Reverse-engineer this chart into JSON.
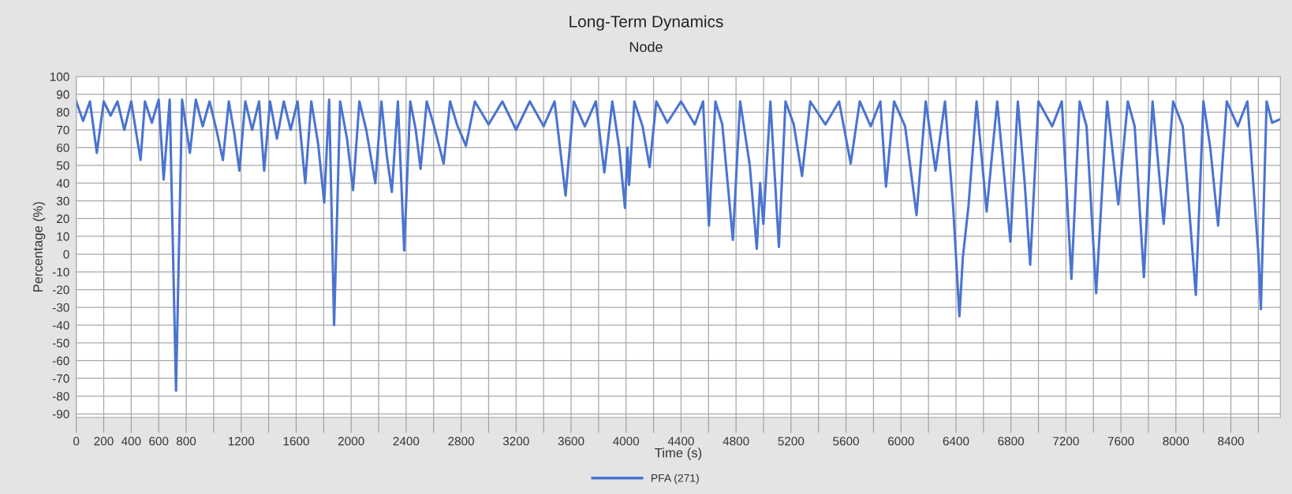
{
  "chart_data": {
    "type": "line",
    "title": "Long-Term Dynamics",
    "subtitle": "Node",
    "xlabel": "Time (s)",
    "ylabel": "Percentage (%)",
    "x": [
      0,
      50,
      100,
      150,
      200,
      250,
      300,
      350,
      400,
      468,
      500,
      550,
      600,
      636,
      680,
      726,
      770,
      827,
      870,
      920,
      970,
      1020,
      1067,
      1110,
      1150,
      1187,
      1230,
      1280,
      1330,
      1367,
      1410,
      1460,
      1510,
      1560,
      1610,
      1666,
      1710,
      1760,
      1804,
      1840,
      1876,
      1920,
      1970,
      2014,
      2060,
      2110,
      2176,
      2220,
      2260,
      2296,
      2340,
      2386,
      2430,
      2470,
      2505,
      2550,
      2600,
      2673,
      2720,
      2770,
      2835,
      2900,
      3000,
      3100,
      3200,
      3300,
      3400,
      3480,
      3560,
      3620,
      3700,
      3780,
      3842,
      3900,
      3950,
      3992,
      4010,
      4022,
      4060,
      4120,
      4171,
      4220,
      4300,
      4400,
      4500,
      4560,
      4603,
      4650,
      4700,
      4777,
      4830,
      4900,
      4951,
      4975,
      4999,
      5050,
      5112,
      5160,
      5220,
      5280,
      5340,
      5450,
      5550,
      5634,
      5700,
      5780,
      5850,
      5891,
      5950,
      6030,
      6113,
      6180,
      6251,
      6320,
      6380,
      6425,
      6450,
      6491,
      6550,
      6623,
      6700,
      6796,
      6850,
      6900,
      6940,
      7000,
      7100,
      7170,
      7240,
      7300,
      7350,
      7420,
      7500,
      7581,
      7650,
      7700,
      7767,
      7830,
      7911,
      7980,
      8050,
      8145,
      8200,
      8250,
      8307,
      8370,
      8450,
      8520,
      8600,
      8618,
      8660,
      8700,
      8760
    ],
    "series": [
      {
        "name": "PFA (271)",
        "color": "#4a74d0",
        "values": [
          86,
          75,
          86,
          57,
          86,
          78,
          86,
          70,
          86,
          53,
          86,
          74,
          87,
          42,
          87,
          -77,
          87,
          57,
          87,
          72,
          86,
          70,
          53,
          86,
          68,
          47,
          86,
          70,
          86,
          47,
          86,
          65,
          86,
          70,
          86,
          40,
          86,
          62,
          29,
          87,
          -40,
          86,
          65,
          36,
          86,
          70,
          40,
          86,
          55,
          35,
          86,
          2,
          86,
          70,
          48,
          86,
          73,
          51,
          86,
          73,
          61,
          86,
          73,
          86,
          70,
          86,
          72,
          86,
          33,
          86,
          72,
          86,
          46,
          86,
          60,
          26,
          60,
          39,
          86,
          72,
          49,
          86,
          74,
          86,
          73,
          86,
          16,
          86,
          73,
          8,
          86,
          50,
          3,
          40,
          17,
          86,
          4,
          86,
          73,
          44,
          86,
          73,
          86,
          51,
          86,
          72,
          86,
          38,
          86,
          72,
          22,
          86,
          47,
          86,
          26,
          -35,
          -2,
          27,
          86,
          24,
          86,
          7,
          86,
          40,
          -6,
          86,
          72,
          86,
          -14,
          86,
          72,
          -22,
          86,
          28,
          86,
          72,
          -13,
          86,
          17,
          86,
          72,
          -23,
          86,
          60,
          16,
          86,
          72,
          86,
          0,
          -31,
          86,
          74,
          76
        ]
      }
    ],
    "xlim": [
      0,
      8760
    ],
    "ylim": [
      -92,
      100
    ],
    "xticks": [
      0,
      200,
      400,
      600,
      800,
      {
        "value": 1000,
        "label": null
      },
      1200,
      {
        "value": 1400,
        "label": null
      },
      1600,
      {
        "value": 1800,
        "label": null
      },
      2000,
      {
        "value": 2200,
        "label": null
      },
      2400,
      {
        "value": 2600,
        "label": null
      },
      2800,
      {
        "value": 3000,
        "label": null
      },
      3200,
      {
        "value": 3400,
        "label": null
      },
      3600,
      {
        "value": 3800,
        "label": null
      },
      4000,
      {
        "value": 4200,
        "label": null
      },
      4400,
      {
        "value": 4600,
        "label": null
      },
      4800,
      {
        "value": 5000,
        "label": null
      },
      5200,
      {
        "value": 5400,
        "label": null
      },
      5600,
      {
        "value": 5800,
        "label": null
      },
      6000,
      {
        "value": 6200,
        "label": null
      },
      6400,
      {
        "value": 6600,
        "label": null
      },
      6800,
      {
        "value": 7000,
        "label": null
      },
      7200,
      {
        "value": 7400,
        "label": null
      },
      7600,
      {
        "value": 7800,
        "label": null
      },
      8000,
      {
        "value": 8200,
        "label": null
      },
      8400,
      {
        "value": 8600,
        "label": null
      }
    ],
    "yticks": [
      -90,
      -80,
      -70,
      -60,
      -50,
      -40,
      -30,
      -20,
      -10,
      0,
      10,
      20,
      30,
      40,
      50,
      60,
      70,
      80,
      90,
      100
    ],
    "grid": true,
    "legend": "bottom",
    "marker": "none",
    "line_style": "solid"
  }
}
